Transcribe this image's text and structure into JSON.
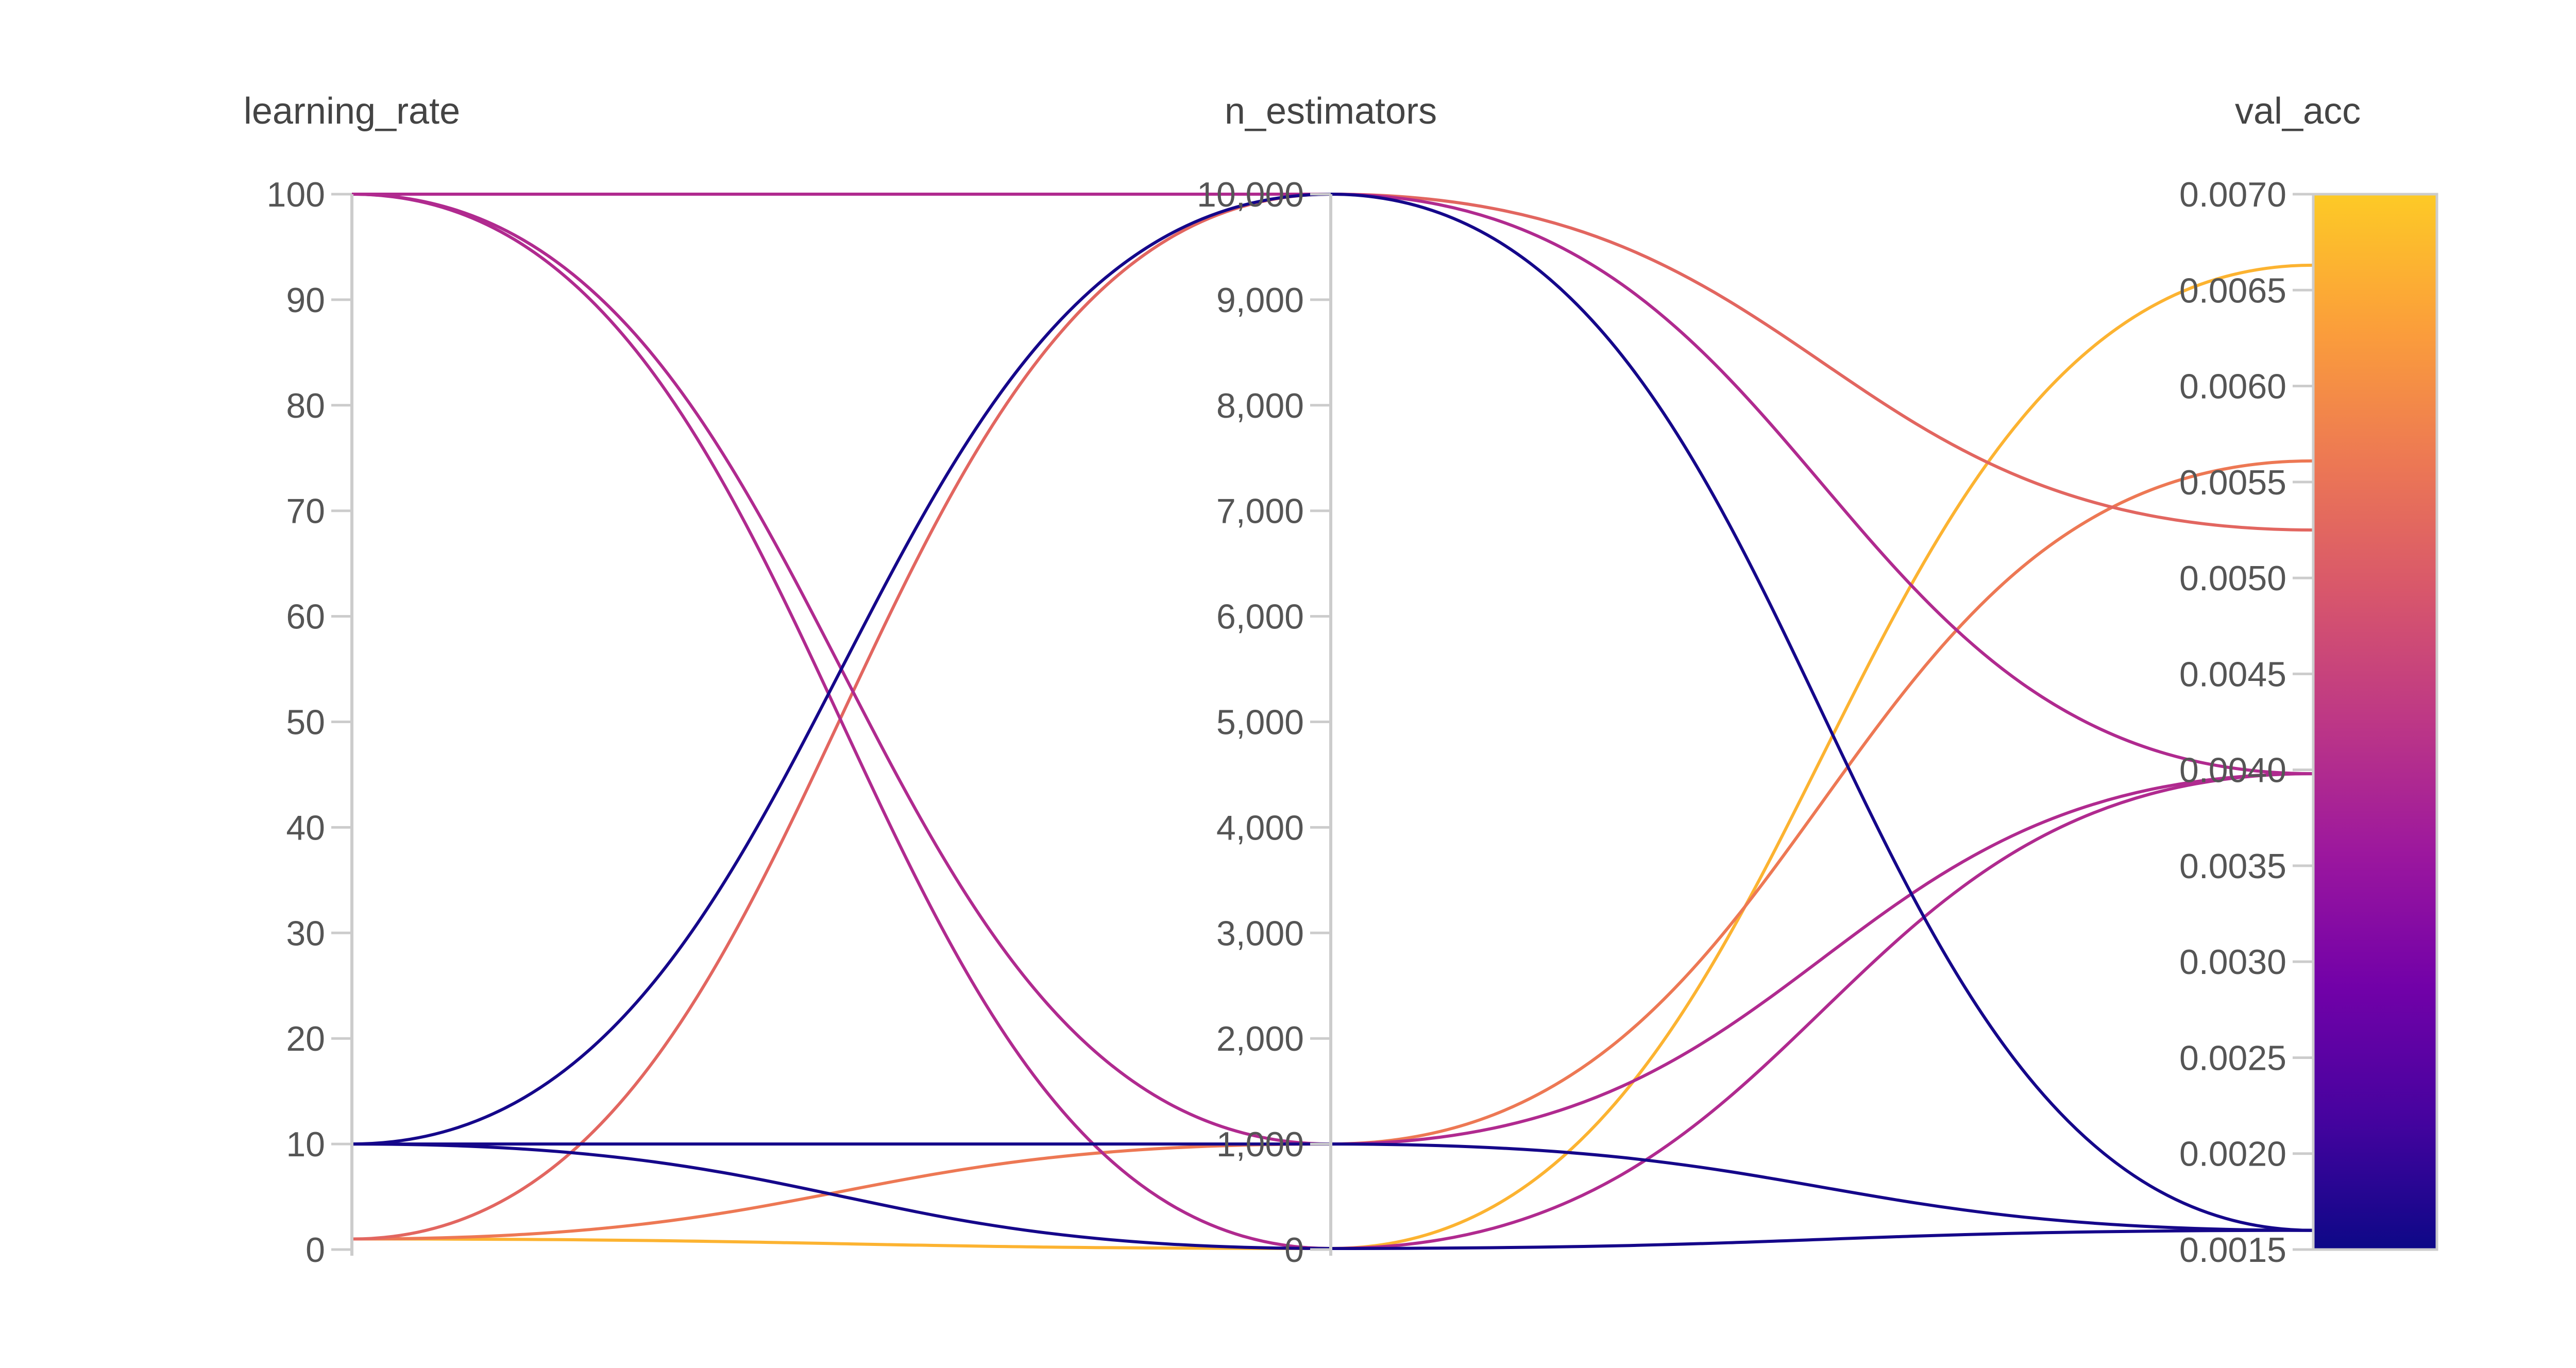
{
  "chart_data": {
    "type": "parallel_coordinates",
    "axes": [
      {
        "key": "learning_rate",
        "label": "learning_rate",
        "range": [
          0,
          100
        ],
        "ticks": [
          "0",
          "10",
          "20",
          "30",
          "40",
          "50",
          "60",
          "70",
          "80",
          "90",
          "100"
        ]
      },
      {
        "key": "n_estimators",
        "label": "n_estimators",
        "range": [
          0,
          10000
        ],
        "ticks": [
          "0",
          "1,000",
          "2,000",
          "3,000",
          "4,000",
          "5,000",
          "6,000",
          "7,000",
          "8,000",
          "9,000",
          "10,000"
        ]
      },
      {
        "key": "val_acc",
        "label": "val_acc",
        "range": [
          0.0015,
          0.007
        ],
        "ticks": [
          "0.0015",
          "0.0020",
          "0.0025",
          "0.0030",
          "0.0035",
          "0.0040",
          "0.0045",
          "0.0050",
          "0.0055",
          "0.0060",
          "0.0065",
          "0.0070"
        ]
      }
    ],
    "runs": [
      {
        "learning_rate": 1,
        "n_estimators": 10,
        "val_acc": 0.00663
      },
      {
        "learning_rate": 1,
        "n_estimators": 1000,
        "val_acc": 0.00561
      },
      {
        "learning_rate": 1,
        "n_estimators": 10000,
        "val_acc": 0.00525
      },
      {
        "learning_rate": 100,
        "n_estimators": 10000,
        "val_acc": 0.00398
      },
      {
        "learning_rate": 100,
        "n_estimators": 1000,
        "val_acc": 0.00398
      },
      {
        "learning_rate": 100,
        "n_estimators": 10,
        "val_acc": 0.00398
      },
      {
        "learning_rate": 10,
        "n_estimators": 10000,
        "val_acc": 0.0016
      },
      {
        "learning_rate": 10,
        "n_estimators": 1000,
        "val_acc": 0.0016
      },
      {
        "learning_rate": 10,
        "n_estimators": 10,
        "val_acc": 0.0016
      }
    ],
    "color_axis": "val_acc",
    "colorscale": [
      "#0d0887",
      "#46039f",
      "#7201a8",
      "#9c179e",
      "#bd3786",
      "#d8576b",
      "#ed7953",
      "#fb9f3a",
      "#fdca26"
    ],
    "grid": false
  }
}
